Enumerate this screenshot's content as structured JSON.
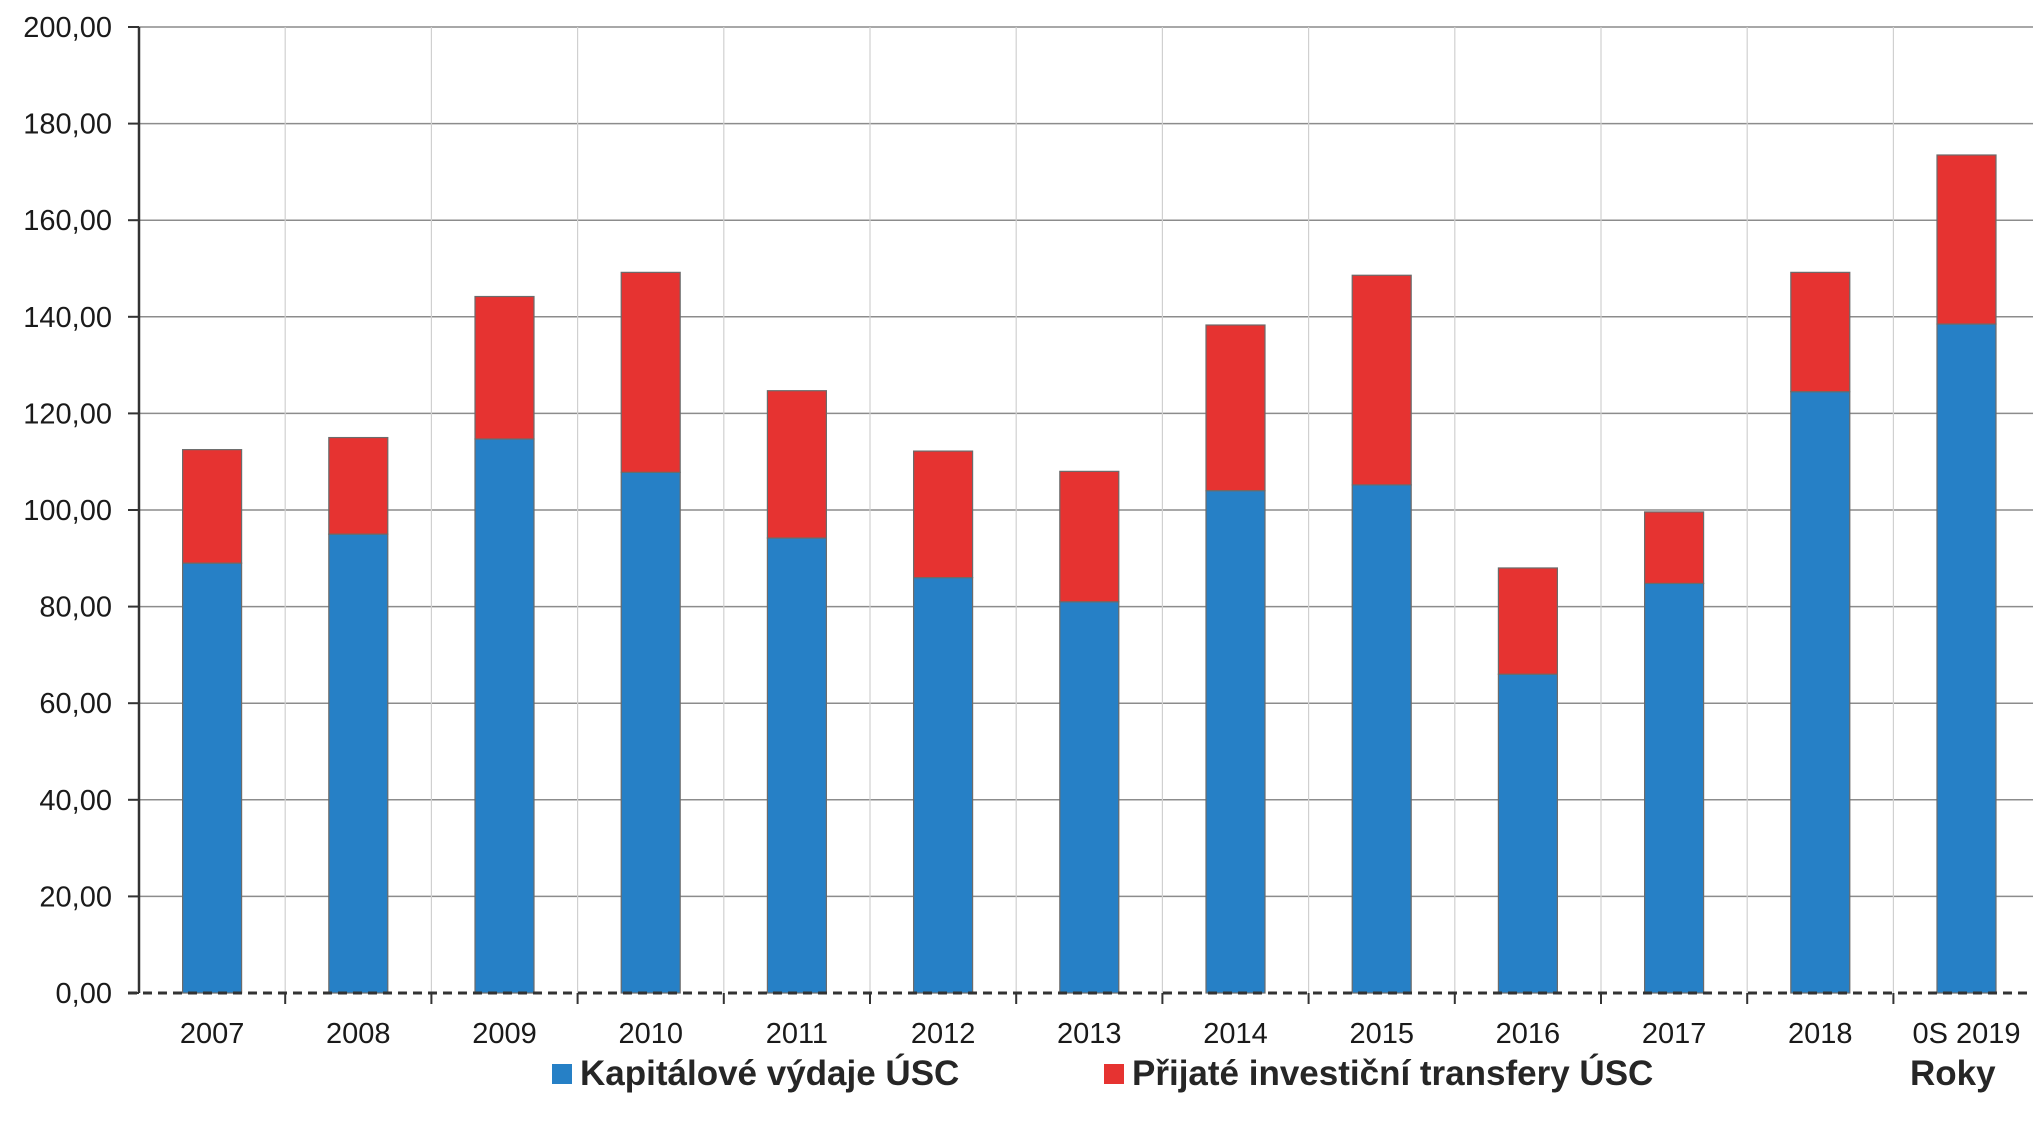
{
  "chart_data": {
    "type": "bar",
    "stacked": true,
    "categories": [
      "2007",
      "2008",
      "2009",
      "2010",
      "2011",
      "2012",
      "2013",
      "2014",
      "2015",
      "2016",
      "2017",
      "2018",
      "0S 2019"
    ],
    "series": [
      {
        "name": "Kapitálové výdaje ÚSC",
        "color": "#2680c6",
        "values": [
          89.0,
          95.0,
          114.7,
          107.8,
          94.2,
          86.0,
          81.0,
          104.0,
          105.2,
          66.0,
          84.8,
          124.5,
          138.5
        ]
      },
      {
        "name": "Přijaté investiční transfery ÚSC",
        "color": "#e63331",
        "values": [
          23.5,
          20.0,
          29.5,
          41.4,
          30.5,
          26.2,
          27.0,
          34.3,
          43.4,
          22.0,
          14.8,
          24.7,
          35.0
        ]
      }
    ],
    "ylim": [
      0,
      200
    ],
    "yticks": [
      "0,00",
      "20,00",
      "40,00",
      "60,00",
      "80,00",
      "100,00",
      "120,00",
      "140,00",
      "160,00",
      "180,00",
      "200,00"
    ],
    "xlabel": "Roky",
    "grid": true,
    "legend_position": "bottom"
  }
}
